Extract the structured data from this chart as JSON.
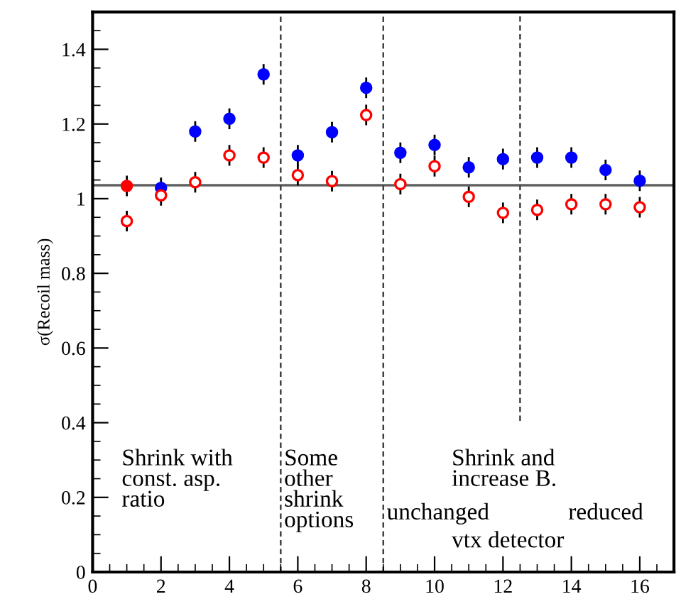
{
  "chart_data": {
    "type": "scatter",
    "ylabel": "σ(Recoil mass)",
    "x": [
      1,
      2,
      3,
      4,
      5,
      6,
      7,
      8,
      9,
      10,
      11,
      12,
      13,
      14,
      15,
      16
    ],
    "series": [
      {
        "color": "#0000ff",
        "colors": [
          "#ff0000",
          "#0000ff",
          "#0000ff",
          "#0000ff",
          "#0000ff",
          "#0000ff",
          "#0000ff",
          "#0000ff",
          "#0000ff",
          "#0000ff",
          "#0000ff",
          "#0000ff",
          "#0000ff",
          "#0000ff",
          "#0000ff",
          "#0000ff"
        ],
        "values": [
          1.034,
          1.029,
          1.18,
          1.214,
          1.333,
          1.116,
          1.178,
          1.297,
          1.123,
          1.144,
          1.084,
          1.106,
          1.11,
          1.11,
          1.077,
          1.048
        ],
        "errors": [
          0.025,
          0.025,
          0.025,
          0.025,
          0.025,
          0.025,
          0.025,
          0.025,
          0.025,
          0.025,
          0.025,
          0.025,
          0.025,
          0.025,
          0.025,
          0.025
        ]
      },
      {
        "color": "#ff0000",
        "values": [
          0.94,
          1.009,
          1.044,
          1.116,
          1.11,
          1.063,
          1.047,
          1.224,
          1.039,
          1.087,
          1.005,
          0.962,
          0.97,
          0.985,
          0.985,
          0.977
        ],
        "errors": [
          0.025,
          0.025,
          0.025,
          0.025,
          0.025,
          0.025,
          0.025,
          0.025,
          0.025,
          0.025,
          0.025,
          0.025,
          0.025,
          0.025,
          0.025,
          0.025
        ]
      }
    ],
    "marker": "circle",
    "xlim": [
      0,
      17
    ],
    "xticks": [
      0,
      2,
      4,
      6,
      8,
      10,
      12,
      14,
      16
    ],
    "ylim": [
      0,
      1.5
    ],
    "yticks": [
      0,
      0.2,
      0.4,
      0.6,
      0.8,
      1,
      1.2,
      1.4
    ],
    "ref_lines": [
      {
        "axis": "y",
        "value": 1.036,
        "color": "#606060",
        "line_style": "solid"
      },
      {
        "axis": "x",
        "value": 5.5,
        "color": "#404040",
        "line_style": "dashed"
      },
      {
        "axis": "x",
        "value": 8.5,
        "color": "#404040",
        "line_style": "dashed"
      },
      {
        "axis": "x",
        "value": 12.5,
        "color": "#404040",
        "line_style": "dashed"
      }
    ],
    "annotations": [
      "Shrink with\nconst. asp.\nratio",
      "Some\nother\nshrink\noptions",
      "Shrink and\nincrease B.",
      "unchanged",
      "reduced",
      "vtx detector"
    ],
    "grid": false,
    "legend": false
  }
}
